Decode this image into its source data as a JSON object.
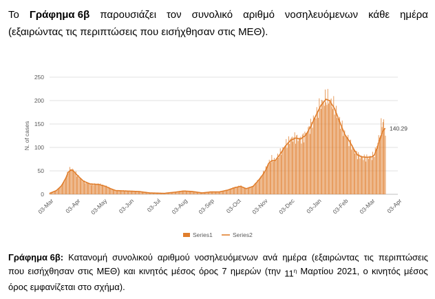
{
  "intro": {
    "w1": "Το",
    "bold": "Γράφημα 6β",
    "rest": [
      "παρουσιάζει",
      "τον",
      "συνολικό",
      "αριθμό",
      "νοσηλευόμενων",
      "κάθε",
      "ημέρα"
    ],
    "line2": "(εξαιρώντας τις περιπτώσεις που εισήχθησαν στις ΜΕΘ)."
  },
  "caption": {
    "bold": "Γράφημα 6β:",
    "line1": [
      "Κατανομή",
      "συνολικού",
      "αριθμού",
      "νοσηλευόμενων",
      "ανά",
      "ημέρα",
      "(εξαιρώντας",
      "τις",
      "περιπτώσεις"
    ],
    "line2a": [
      "που",
      "εισήχθησαν",
      "στις",
      "ΜΕΘ)",
      "και",
      "κινητός",
      "μέσος",
      "όρος",
      "7",
      "ημερών",
      "(την"
    ],
    "line2b_num": "11",
    "line2b_sup": "η",
    "line2b_rest": [
      "Μαρτίου",
      "2021,",
      "ο",
      "κινητός",
      "μέσος"
    ],
    "line3": "όρος εμφανίζεται στο σχήμα)."
  },
  "chart_data": {
    "type": "bar",
    "ylabel": "N. of cases",
    "ylim": [
      0,
      250
    ],
    "yticks": [
      0,
      50,
      100,
      150,
      200,
      250
    ],
    "xticks": [
      "03-Mar",
      "03-Apr",
      "03-May",
      "03-Jun",
      "03-Jul",
      "03-Aug",
      "03-Sep",
      "03-Oct",
      "03-Nov",
      "03-Dec",
      "03-Jan",
      "03-Feb",
      "03-Mar",
      "03-Apr"
    ],
    "annotation": "140.29",
    "legend": [
      "Series1",
      "Series2"
    ],
    "legend_position": "bottom",
    "series_color": "#E07E2D",
    "daily_anchor_points": [
      [
        0,
        2
      ],
      [
        8,
        8
      ],
      [
        14,
        18
      ],
      [
        19,
        35
      ],
      [
        22,
        48
      ],
      [
        25,
        55
      ],
      [
        28,
        52
      ],
      [
        33,
        40
      ],
      [
        40,
        28
      ],
      [
        48,
        22
      ],
      [
        58,
        22
      ],
      [
        66,
        18
      ],
      [
        72,
        12
      ],
      [
        78,
        8
      ],
      [
        90,
        8
      ],
      [
        105,
        6
      ],
      [
        118,
        3
      ],
      [
        135,
        2
      ],
      [
        150,
        5
      ],
      [
        158,
        8
      ],
      [
        168,
        6
      ],
      [
        180,
        3
      ],
      [
        190,
        6
      ],
      [
        200,
        5
      ],
      [
        210,
        9
      ],
      [
        218,
        15
      ],
      [
        225,
        18
      ],
      [
        232,
        12
      ],
      [
        240,
        18
      ],
      [
        245,
        28
      ],
      [
        250,
        40
      ],
      [
        255,
        55
      ],
      [
        258,
        68
      ],
      [
        262,
        75
      ],
      [
        266,
        72
      ],
      [
        272,
        88
      ],
      [
        278,
        105
      ],
      [
        284,
        118
      ],
      [
        290,
        122
      ],
      [
        296,
        118
      ],
      [
        302,
        128
      ],
      [
        308,
        148
      ],
      [
        314,
        170
      ],
      [
        320,
        192
      ],
      [
        326,
        205
      ],
      [
        330,
        202
      ],
      [
        336,
        185
      ],
      [
        342,
        155
      ],
      [
        348,
        130
      ],
      [
        354,
        112
      ],
      [
        360,
        92
      ],
      [
        363,
        85
      ],
      [
        368,
        80
      ],
      [
        374,
        78
      ],
      [
        380,
        80
      ],
      [
        383,
        86
      ],
      [
        386,
        105
      ],
      [
        389,
        125
      ],
      [
        391,
        145
      ],
      [
        393,
        160
      ],
      [
        395,
        142
      ],
      [
        396,
        128
      ]
    ],
    "moving_avg_anchor_points": [
      [
        0,
        2
      ],
      [
        8,
        8
      ],
      [
        14,
        18
      ],
      [
        19,
        34
      ],
      [
        22,
        47
      ],
      [
        25,
        52
      ],
      [
        28,
        50
      ],
      [
        33,
        40
      ],
      [
        40,
        28
      ],
      [
        48,
        22
      ],
      [
        58,
        21
      ],
      [
        66,
        17
      ],
      [
        72,
        12
      ],
      [
        78,
        8
      ],
      [
        90,
        7
      ],
      [
        105,
        6
      ],
      [
        118,
        3
      ],
      [
        135,
        2
      ],
      [
        150,
        5
      ],
      [
        158,
        7
      ],
      [
        168,
        6
      ],
      [
        180,
        3
      ],
      [
        190,
        5
      ],
      [
        200,
        5
      ],
      [
        210,
        9
      ],
      [
        218,
        14
      ],
      [
        225,
        17
      ],
      [
        232,
        12
      ],
      [
        240,
        17
      ],
      [
        245,
        27
      ],
      [
        250,
        38
      ],
      [
        255,
        52
      ],
      [
        258,
        65
      ],
      [
        262,
        72
      ],
      [
        266,
        72
      ],
      [
        272,
        86
      ],
      [
        278,
        103
      ],
      [
        284,
        115
      ],
      [
        290,
        120
      ],
      [
        296,
        118
      ],
      [
        302,
        126
      ],
      [
        308,
        145
      ],
      [
        314,
        168
      ],
      [
        320,
        190
      ],
      [
        326,
        203
      ],
      [
        330,
        200
      ],
      [
        336,
        183
      ],
      [
        342,
        155
      ],
      [
        348,
        128
      ],
      [
        354,
        112
      ],
      [
        360,
        92
      ],
      [
        363,
        84
      ],
      [
        368,
        80
      ],
      [
        374,
        79
      ],
      [
        380,
        80
      ],
      [
        383,
        84
      ],
      [
        386,
        98
      ],
      [
        389,
        115
      ],
      [
        391,
        125
      ],
      [
        393,
        135
      ],
      [
        395,
        140
      ],
      [
        396,
        140.29
      ]
    ]
  }
}
